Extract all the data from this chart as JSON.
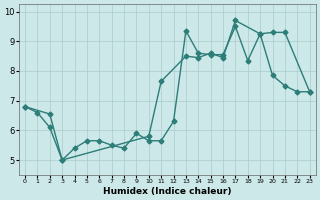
{
  "xlabel": "Humidex (Indice chaleur)",
  "background_color": "#cce8e8",
  "line_color": "#2d7d78",
  "xlim": [
    -0.5,
    23.5
  ],
  "ylim": [
    4.5,
    10.25
  ],
  "yticks": [
    5,
    6,
    7,
    8,
    9,
    10
  ],
  "xticks": [
    0,
    1,
    2,
    3,
    4,
    5,
    6,
    7,
    8,
    9,
    10,
    11,
    12,
    13,
    14,
    15,
    16,
    17,
    18,
    19,
    20,
    21,
    22,
    23
  ],
  "series1_x": [
    0,
    1,
    2,
    3,
    4,
    5,
    6,
    7,
    8,
    9,
    10,
    11,
    12,
    13,
    14,
    15,
    16,
    17,
    18,
    19,
    20,
    21,
    22,
    23
  ],
  "series1_y": [
    6.8,
    6.6,
    6.1,
    5.0,
    5.4,
    5.65,
    5.65,
    5.5,
    5.4,
    5.9,
    5.65,
    5.65,
    6.3,
    9.35,
    8.6,
    8.55,
    8.55,
    9.5,
    8.35,
    9.25,
    7.85,
    7.5,
    7.3,
    7.3
  ],
  "series2_x": [
    0,
    2,
    3,
    10,
    11,
    13,
    14,
    15,
    16,
    17,
    19,
    20,
    21,
    23
  ],
  "series2_y": [
    6.8,
    6.55,
    5.0,
    5.8,
    7.65,
    8.5,
    8.45,
    8.6,
    8.45,
    9.7,
    9.25,
    9.3,
    9.3,
    7.3
  ],
  "grid_color": "#aacccc",
  "marker": "D",
  "markersize": 2.5,
  "linewidth": 1.0
}
